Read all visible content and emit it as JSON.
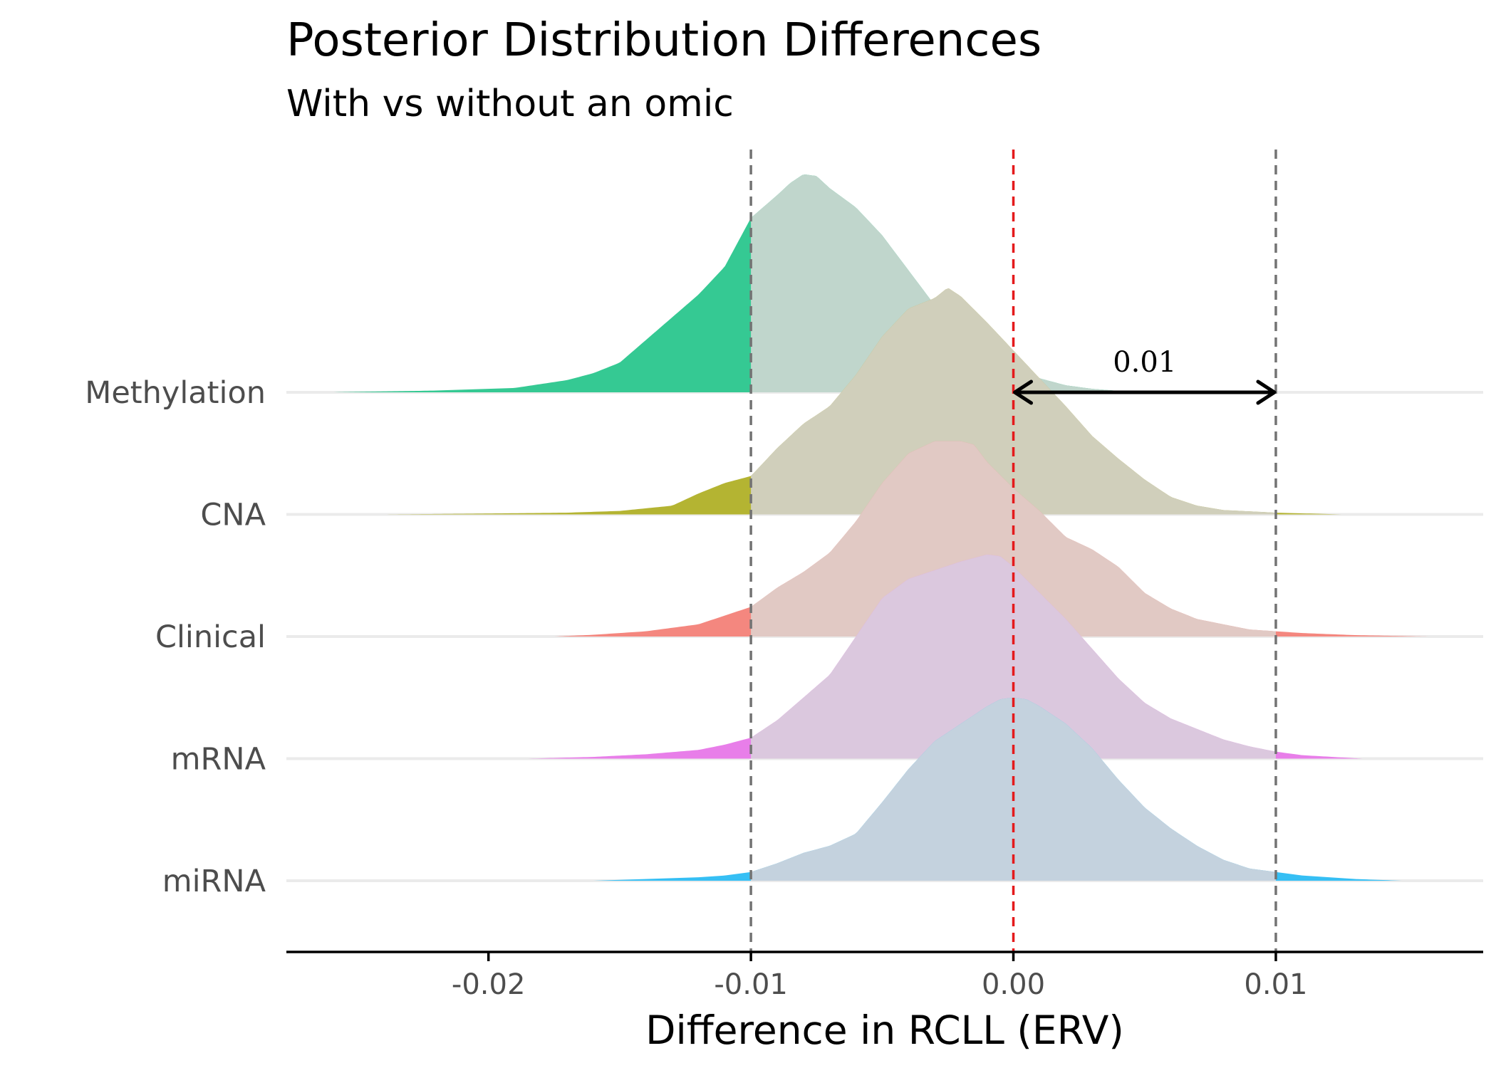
{
  "chart_data": {
    "type": "area",
    "title": "Posterior Distribution Differences",
    "subtitle": "With vs without an omic",
    "xlabel": "Difference in RCLL (ERV)",
    "ylabel": "",
    "xlim": [
      -0.0277,
      0.0179
    ],
    "x_ticks": [
      -0.02,
      -0.01,
      0.0,
      0.01
    ],
    "x_tick_labels": [
      "-0.02",
      "-0.01",
      "0.00",
      "0.01"
    ],
    "categories": [
      "Methylation",
      "CNA",
      "Clinical",
      "mRNA",
      "miRNA"
    ],
    "reference_lines": {
      "zero": {
        "x": 0.0,
        "color": "#e41a1c",
        "style": "dashed"
      },
      "rope": {
        "x": [
          -0.01,
          0.01
        ],
        "color": "#737373",
        "style": "dashed"
      }
    },
    "annotation": {
      "text": "0.01",
      "from": 0.0,
      "to": 0.01,
      "category": "Methylation"
    },
    "grid": false,
    "legend": "none",
    "series": [
      {
        "name": "Methylation",
        "fill_outside": "#35c993",
        "fill_inside": "#c0d6cc",
        "x": [
          -0.026,
          -0.022,
          -0.019,
          -0.017,
          -0.016,
          -0.015,
          -0.014,
          -0.013,
          -0.012,
          -0.011,
          -0.01,
          -0.009,
          -0.0085,
          -0.008,
          -0.0075,
          -0.007,
          -0.006,
          -0.005,
          -0.004,
          -0.003,
          -0.002,
          -0.001,
          0.0,
          0.001,
          0.002,
          0.003,
          0.004,
          0.0055
        ],
        "density": [
          0.0,
          0.01,
          0.025,
          0.07,
          0.11,
          0.17,
          0.3,
          0.43,
          0.56,
          0.72,
          1.0,
          1.13,
          1.2,
          1.25,
          1.24,
          1.17,
          1.06,
          0.9,
          0.7,
          0.5,
          0.32,
          0.22,
          0.14,
          0.08,
          0.04,
          0.02,
          0.008,
          0.0
        ]
      },
      {
        "name": "CNA",
        "fill_outside": "#b4b432",
        "fill_inside": "#d0cfbb",
        "x": [
          -0.024,
          -0.02,
          -0.017,
          -0.015,
          -0.013,
          -0.012,
          -0.011,
          -0.01,
          -0.009,
          -0.008,
          -0.007,
          -0.006,
          -0.005,
          -0.004,
          -0.003,
          -0.0025,
          -0.002,
          -0.001,
          0.0,
          0.001,
          0.002,
          0.003,
          0.004,
          0.005,
          0.006,
          0.007,
          0.008,
          0.01,
          0.0125
        ],
        "density": [
          0.0,
          0.005,
          0.01,
          0.02,
          0.05,
          0.12,
          0.18,
          0.22,
          0.38,
          0.52,
          0.62,
          0.8,
          1.02,
          1.18,
          1.24,
          1.3,
          1.25,
          1.1,
          0.94,
          0.78,
          0.62,
          0.45,
          0.32,
          0.2,
          0.1,
          0.05,
          0.025,
          0.01,
          0.0
        ]
      },
      {
        "name": "Clinical",
        "fill_outside": "#f4877f",
        "fill_inside": "#e1c9c4",
        "x": [
          -0.0175,
          -0.016,
          -0.014,
          -0.012,
          -0.011,
          -0.01,
          -0.009,
          -0.008,
          -0.007,
          -0.006,
          -0.005,
          -0.004,
          -0.003,
          -0.002,
          -0.0015,
          -0.001,
          0.0,
          0.001,
          0.002,
          0.003,
          0.004,
          0.005,
          0.006,
          0.007,
          0.008,
          0.009,
          0.011,
          0.013,
          0.0158
        ],
        "density": [
          0.0,
          0.01,
          0.03,
          0.07,
          0.12,
          0.17,
          0.28,
          0.37,
          0.48,
          0.66,
          0.88,
          1.05,
          1.12,
          1.12,
          1.1,
          1.0,
          0.85,
          0.72,
          0.57,
          0.5,
          0.4,
          0.25,
          0.16,
          0.1,
          0.07,
          0.04,
          0.02,
          0.008,
          0.0
        ]
      },
      {
        "name": "mRNA",
        "fill_outside": "#e87ee9",
        "fill_inside": "#dbc8de",
        "x": [
          -0.0185,
          -0.016,
          -0.014,
          -0.012,
          -0.011,
          -0.01,
          -0.009,
          -0.008,
          -0.007,
          -0.006,
          -0.005,
          -0.004,
          -0.003,
          -0.002,
          -0.001,
          -0.0005,
          0.0,
          0.001,
          0.002,
          0.003,
          0.004,
          0.005,
          0.006,
          0.007,
          0.008,
          0.009,
          0.01,
          0.011,
          0.0133
        ],
        "density": [
          0.0,
          0.01,
          0.025,
          0.05,
          0.08,
          0.12,
          0.22,
          0.35,
          0.48,
          0.7,
          0.92,
          1.03,
          1.08,
          1.13,
          1.17,
          1.16,
          1.1,
          0.95,
          0.8,
          0.63,
          0.46,
          0.32,
          0.23,
          0.17,
          0.11,
          0.07,
          0.04,
          0.02,
          0.0
        ]
      },
      {
        "name": "miRNA",
        "fill_outside": "#36bff4",
        "fill_inside": "#c4d2de",
        "x": [
          -0.016,
          -0.014,
          -0.012,
          -0.011,
          -0.01,
          -0.009,
          -0.008,
          -0.007,
          -0.006,
          -0.005,
          -0.004,
          -0.003,
          -0.002,
          -0.001,
          -0.0005,
          0.0,
          0.0005,
          0.001,
          0.002,
          0.003,
          0.004,
          0.005,
          0.006,
          0.007,
          0.008,
          0.009,
          0.01,
          0.011,
          0.012,
          0.013,
          0.0148
        ],
        "density": [
          0.0,
          0.01,
          0.02,
          0.03,
          0.05,
          0.1,
          0.16,
          0.2,
          0.27,
          0.45,
          0.64,
          0.8,
          0.9,
          1.0,
          1.04,
          1.05,
          1.04,
          1.0,
          0.9,
          0.76,
          0.58,
          0.42,
          0.3,
          0.2,
          0.12,
          0.07,
          0.05,
          0.03,
          0.02,
          0.01,
          0.0
        ]
      }
    ]
  }
}
